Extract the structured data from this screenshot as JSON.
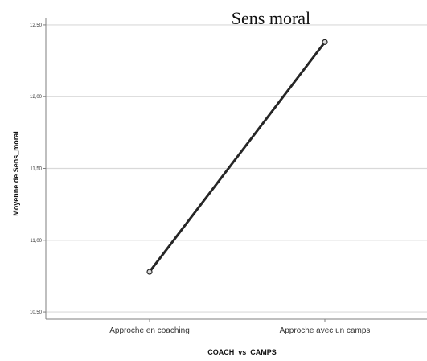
{
  "chart_data": {
    "type": "line",
    "title": "Sens moral",
    "xlabel": "COACH_vs_CAMPS",
    "ylabel": "Moyenne de Sens_moral",
    "categories": [
      "Approche en coaching",
      "Approche avec un camps"
    ],
    "series": [
      {
        "values": [
          10.78,
          12.38
        ]
      }
    ],
    "ylim": [
      10.45,
      12.55
    ],
    "yticks": [
      10.5,
      11.0,
      11.5,
      12.0,
      12.5
    ],
    "ytick_labels": [
      "10,50",
      "11,00",
      "11,50",
      "12,00",
      "12,50"
    ],
    "grid": true,
    "legend": "none",
    "colors": {
      "line": "#262626",
      "grid": "#d9d9d9",
      "axis": "#7f7f7f",
      "background": "#ffffff"
    }
  }
}
